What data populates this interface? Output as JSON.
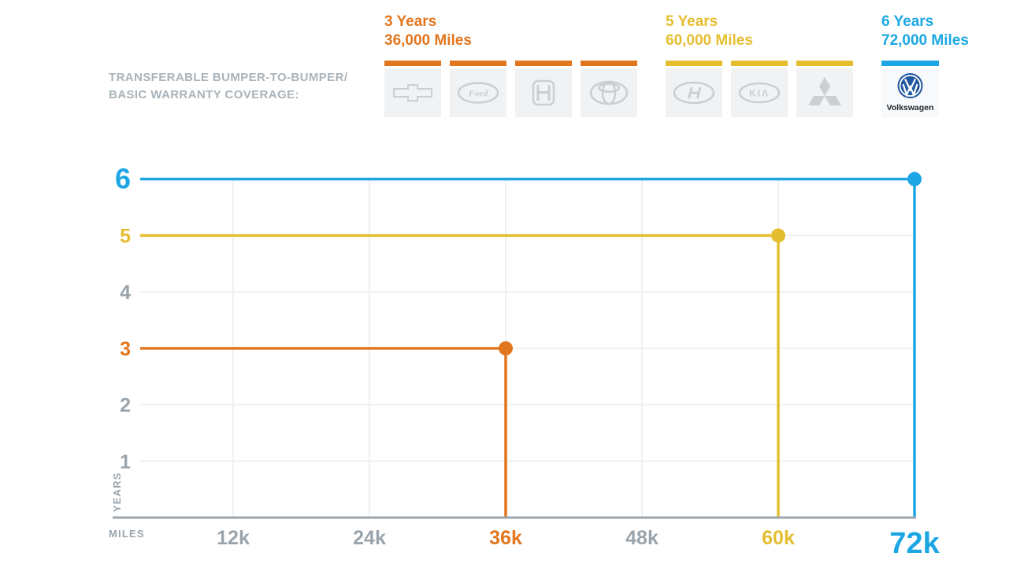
{
  "colors": {
    "orange": "#E2761E",
    "yellow": "#E5BE2F",
    "blue": "#1CA7E4",
    "gray_text": "#9AA4AC",
    "light_grid": "#EFF0F2",
    "axis": "#9CA6AC",
    "tile_bg": "#F0F2F4",
    "logo_gray": "#C9CFD3",
    "caption": "#A9B3BA",
    "vw_navy": "#21579F",
    "vw_text": "#1B262C"
  },
  "header": {
    "caption_line1": "TRANSFERABLE BUMPER-TO-BUMPER/",
    "caption_line2": "BASIC WARRANTY COVERAGE:",
    "groups": [
      {
        "years_label": "3 Years",
        "miles_label": "36,000 Miles",
        "color_key": "orange",
        "brands": [
          "Chevrolet",
          "Ford",
          "Honda",
          "Toyota"
        ]
      },
      {
        "years_label": "5 Years",
        "miles_label": "60,000 Miles",
        "color_key": "yellow",
        "brands": [
          "Hyundai",
          "Kia",
          "Mitsubishi"
        ]
      },
      {
        "years_label": "6 Years",
        "miles_label": "72,000 Miles",
        "color_key": "blue",
        "brands": [
          "Volkswagen"
        ]
      }
    ],
    "vw_tile_label": "Volkswagen"
  },
  "chart_data": {
    "type": "line",
    "title": "Transferable bumper-to-bumper / basic warranty coverage comparison",
    "xlabel": "MILES",
    "ylabel": "YEARS",
    "xlim": [
      0,
      72000
    ],
    "ylim": [
      0,
      6
    ],
    "grid": true,
    "x_ticks": [
      {
        "label": "12k",
        "miles": 12000,
        "color_key": "gray_text",
        "emphasis": false
      },
      {
        "label": "24k",
        "miles": 24000,
        "color_key": "gray_text",
        "emphasis": false
      },
      {
        "label": "36k",
        "miles": 36000,
        "color_key": "orange",
        "emphasis": false
      },
      {
        "label": "48k",
        "miles": 48000,
        "color_key": "gray_text",
        "emphasis": false
      },
      {
        "label": "60k",
        "miles": 60000,
        "color_key": "yellow",
        "emphasis": false
      },
      {
        "label": "72k",
        "miles": 72000,
        "color_key": "blue",
        "emphasis": true
      }
    ],
    "y_ticks": [
      {
        "label": "1",
        "years": 1,
        "color_key": "gray_text",
        "emphasis": false
      },
      {
        "label": "2",
        "years": 2,
        "color_key": "gray_text",
        "emphasis": false
      },
      {
        "label": "3",
        "years": 3,
        "color_key": "orange",
        "emphasis": false
      },
      {
        "label": "4",
        "years": 4,
        "color_key": "gray_text",
        "emphasis": false
      },
      {
        "label": "5",
        "years": 5,
        "color_key": "yellow",
        "emphasis": false
      },
      {
        "label": "6",
        "years": 6,
        "color_key": "blue",
        "emphasis": true
      }
    ],
    "series": [
      {
        "name": "Chevrolet / Ford / Honda / Toyota",
        "years": 3,
        "miles": 36000,
        "color_key": "orange"
      },
      {
        "name": "Hyundai / Kia / Mitsubishi",
        "years": 5,
        "miles": 60000,
        "color_key": "yellow"
      },
      {
        "name": "Volkswagen",
        "years": 6,
        "miles": 72000,
        "color_key": "blue"
      }
    ]
  }
}
